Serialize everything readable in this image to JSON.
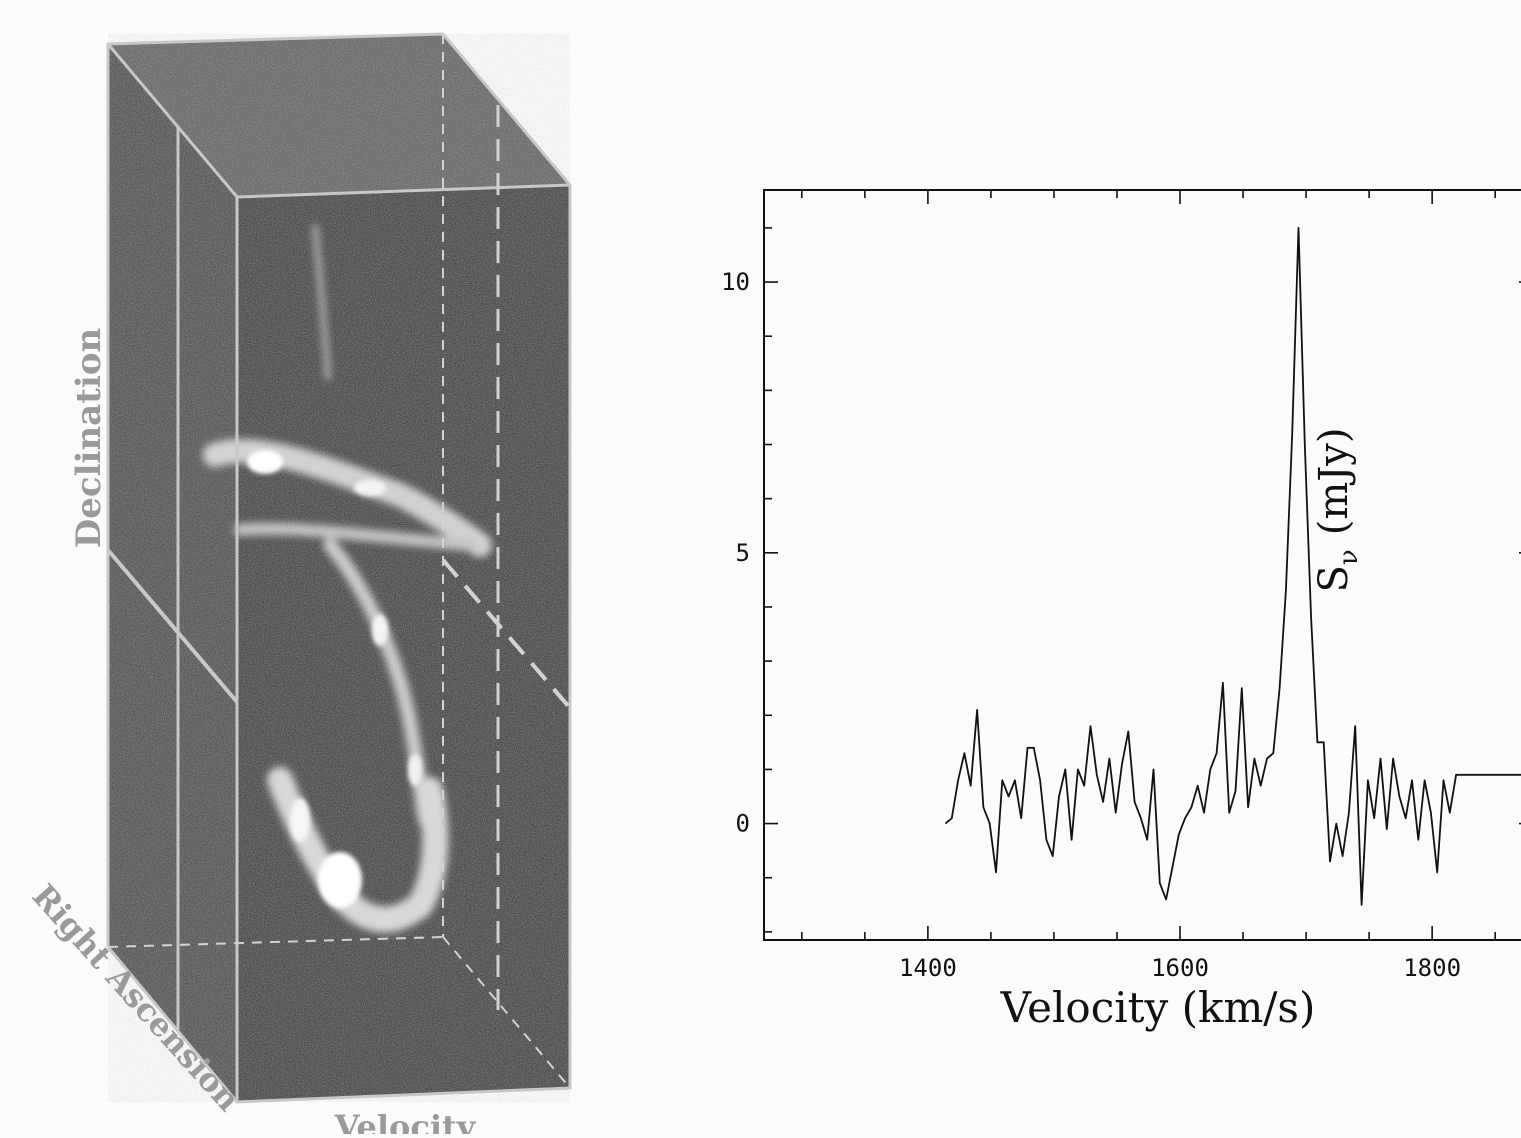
{
  "cube": {
    "labels": {
      "declination": "Declination",
      "right_ascension": "Right Ascension",
      "velocity": "Velocity"
    }
  },
  "chart_data": {
    "type": "line",
    "xlabel": "Velocity (km/s)",
    "ylabel_main": "S",
    "ylabel_sub": "ν",
    "ylabel_unit": "(mJy)",
    "xlim": [
      1270,
      1880
    ],
    "ylim": [
      -2.15,
      11.7
    ],
    "xticks": [
      1400,
      1600,
      1800
    ],
    "yticks": [
      0,
      5,
      10
    ],
    "xtick_labels": [
      "1400",
      "1600",
      "1800"
    ],
    "ytick_labels": [
      "0",
      "5",
      "10"
    ],
    "series": [
      {
        "x": [
          1414,
          1419,
          1424,
          1429,
          1434,
          1439,
          1444,
          1449,
          1454,
          1459,
          1464,
          1469,
          1474,
          1479,
          1484,
          1489,
          1494,
          1499,
          1504,
          1509,
          1514,
          1519,
          1524,
          1529,
          1534,
          1539,
          1544,
          1549,
          1554,
          1559,
          1564,
          1569,
          1574,
          1579,
          1584,
          1589,
          1594,
          1599,
          1604,
          1609,
          1614,
          1619,
          1624,
          1629,
          1634,
          1639,
          1644,
          1649,
          1654,
          1659,
          1664,
          1669,
          1674,
          1679,
          1684,
          1689,
          1694,
          1699,
          1704,
          1709,
          1714,
          1719,
          1724,
          1729,
          1734,
          1739,
          1744,
          1749,
          1754,
          1759,
          1764,
          1769,
          1774,
          1779,
          1784,
          1789,
          1794,
          1799,
          1804,
          1809,
          1814,
          1819,
          1824,
          1829,
          1834,
          1839,
          1844,
          1849,
          1854,
          1859,
          1864,
          1869,
          1874,
          1879
        ],
        "values": [
          0.0,
          0.1,
          0.8,
          1.3,
          0.7,
          2.1,
          0.3,
          0.0,
          -0.9,
          0.8,
          0.5,
          0.8,
          0.1,
          1.4,
          1.4,
          0.8,
          -0.3,
          -0.6,
          0.5,
          1.0,
          -0.3,
          1.0,
          0.7,
          1.8,
          0.9,
          0.4,
          1.2,
          0.2,
          1.1,
          1.7,
          0.4,
          0.1,
          -0.3,
          1.0,
          -1.1,
          -1.4,
          -0.8,
          -0.2,
          0.1,
          0.3,
          0.7,
          0.2,
          1.0,
          1.3,
          2.6,
          0.2,
          0.6,
          2.5,
          0.3,
          1.2,
          0.7,
          1.2,
          1.3,
          2.5,
          4.3,
          7.2,
          11.0,
          7.0,
          3.8,
          1.5,
          1.5,
          -0.7,
          0.0,
          -0.6,
          0.2,
          1.8,
          -1.5,
          0.8,
          0.1,
          1.2,
          -0.1,
          1.2,
          0.5,
          0.1,
          0.8,
          -0.3,
          0.8,
          0.2,
          -0.9,
          0.8,
          0.2,
          0.9,
          0.9,
          0.9,
          0.9,
          0.9,
          0.9,
          0.9,
          0.9,
          0.9,
          0.9,
          0.9,
          0.9,
          0.9
        ]
      }
    ]
  }
}
